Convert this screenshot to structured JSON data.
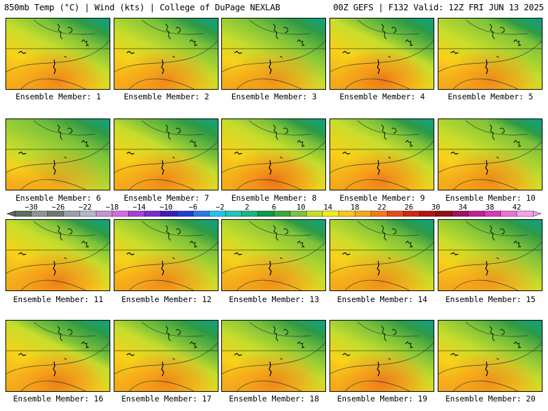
{
  "header": {
    "left": "850mb Temp (°C) | Wind (kts) | College of DuPage NEXLAB",
    "right": "00Z GEFS | F132 Valid: 12Z FRI JUN 13 2025"
  },
  "panels": [
    {
      "label": "Ensemble Member: 1"
    },
    {
      "label": "Ensemble Member: 2"
    },
    {
      "label": "Ensemble Member: 3"
    },
    {
      "label": "Ensemble Member: 4"
    },
    {
      "label": "Ensemble Member: 5"
    },
    {
      "label": "Ensemble Member: 6"
    },
    {
      "label": "Ensemble Member: 7"
    },
    {
      "label": "Ensemble Member: 8"
    },
    {
      "label": "Ensemble Member: 9"
    },
    {
      "label": "Ensemble Member: 10"
    },
    {
      "label": "Ensemble Member: 11"
    },
    {
      "label": "Ensemble Member: 12"
    },
    {
      "label": "Ensemble Member: 13"
    },
    {
      "label": "Ensemble Member: 14"
    },
    {
      "label": "Ensemble Member: 15"
    },
    {
      "label": "Ensemble Member: 16"
    },
    {
      "label": "Ensemble Member: 17"
    },
    {
      "label": "Ensemble Member: 18"
    },
    {
      "label": "Ensemble Member: 19"
    },
    {
      "label": "Ensemble Member: 20"
    }
  ],
  "colorbar": {
    "labels": [
      "−30",
      "−26",
      "−22",
      "−18",
      "−14",
      "−10",
      "−6",
      "−2",
      "2",
      "6",
      "10",
      "14",
      "18",
      "22",
      "26",
      "30",
      "34",
      "38",
      "42"
    ],
    "colors": [
      "#5f6b63",
      "#8c9591",
      "#727774",
      "#9aa0a8",
      "#b4b8c8",
      "#c393d6",
      "#d56be0",
      "#a83fd8",
      "#7d2ad0",
      "#3b1fb8",
      "#1f3fd8",
      "#2a7ae8",
      "#22c4ef",
      "#20c8b0",
      "#18b77f",
      "#0a9a4a",
      "#37a83a",
      "#7cc23a",
      "#c6dd2c",
      "#f2ee1a",
      "#f7c81a",
      "#f7a71a",
      "#f47a18",
      "#e84a18",
      "#d42418",
      "#b01414",
      "#8f1010",
      "#a01060",
      "#c0209a",
      "#d83ab8",
      "#ee70d8",
      "#f4a4e8"
    ]
  }
}
